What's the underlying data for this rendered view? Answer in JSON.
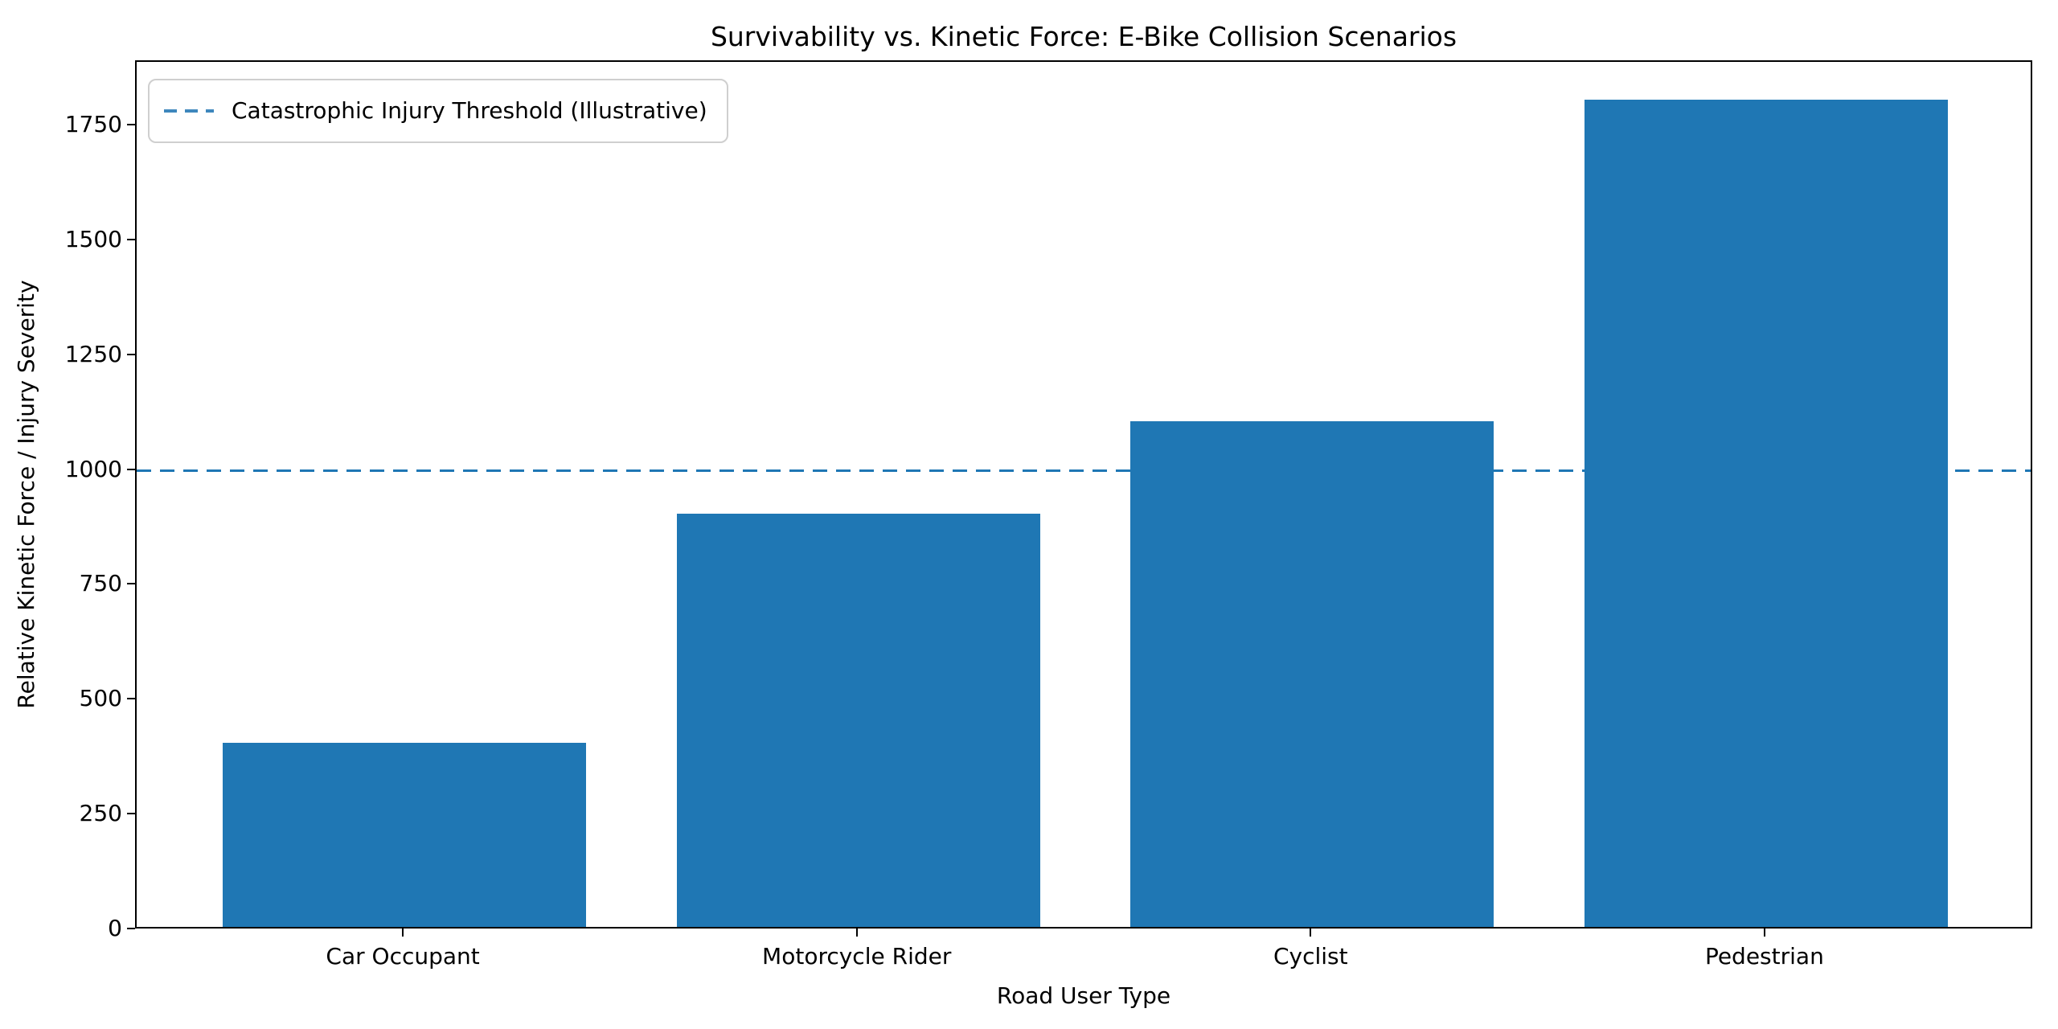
{
  "chart_data": {
    "type": "bar",
    "title": "Survivability vs. Kinetic Force: E-Bike Collision Scenarios",
    "xlabel": "Road User Type",
    "ylabel": "Relative Kinetic Force / Injury Severity",
    "categories": [
      "Car Occupant",
      "Motorcycle Rider",
      "Cyclist",
      "Pedestrian"
    ],
    "values": [
      400,
      900,
      1100,
      1800
    ],
    "yticks": [
      0,
      250,
      500,
      750,
      1000,
      1250,
      1500,
      1750
    ],
    "ylim": [
      0,
      1890
    ],
    "bar_color": "#1f77b4",
    "grid": false,
    "legend_position": "upper left",
    "threshold": {
      "value": 1000,
      "label": "Catastrophic Injury Threshold (Illustrative)",
      "line_style": "dashed",
      "line_color": "#1f77b4"
    }
  }
}
